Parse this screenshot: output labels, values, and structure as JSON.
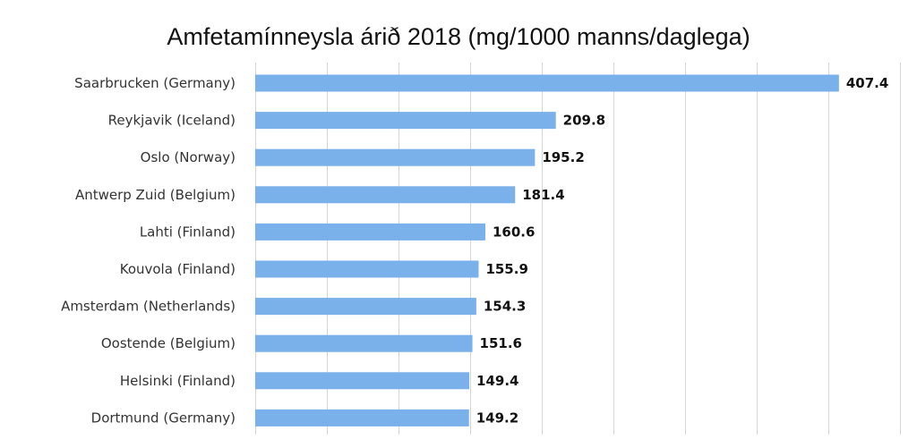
{
  "chart_data": {
    "type": "bar",
    "orientation": "horizontal",
    "title": "Amfetamínneysla árið 2018 (mg/1000 manns/daglega)",
    "xlabel": "",
    "ylabel": "",
    "categories": [
      "Saarbrucken  (Germany)",
      "Reykjavik  (Iceland)",
      "Oslo (Norway)",
      "Antwerp Zuid (Belgium)",
      "Lahti (Finland)",
      "Kouvola (Finland)",
      "Amsterdam (Netherlands)",
      "Oostende (Belgium)",
      "Helsinki (Finland)",
      "Dortmund (Germany)"
    ],
    "values": [
      407.4,
      209.8,
      195.2,
      181.4,
      160.6,
      155.9,
      154.3,
      151.6,
      149.4,
      149.2
    ],
    "value_labels": [
      "407.4",
      "209.8",
      "195.2",
      "181.4",
      "160.6",
      "155.9",
      "154.3",
      "151.6",
      "149.4",
      "149.2"
    ],
    "xlim": [
      0,
      450
    ],
    "grid_step": 50,
    "grid": true,
    "legend": "none",
    "bar_color": "#7ab1ea"
  }
}
